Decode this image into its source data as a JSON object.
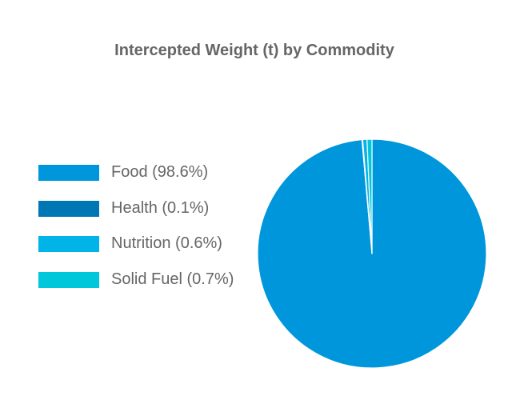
{
  "chart_data": {
    "type": "pie",
    "title": "Intercepted Weight (t) by Commodity",
    "slices": [
      {
        "label": "Food (98.6%)",
        "name": "Food",
        "percent": 98.6,
        "color": "#0096db"
      },
      {
        "label": "Health (0.1%)",
        "name": "Health",
        "percent": 0.1,
        "color": "#0077b5"
      },
      {
        "label": "Nutrition (0.6%)",
        "name": "Nutrition",
        "percent": 0.6,
        "color": "#00b4e8"
      },
      {
        "label": "Solid Fuel (0.7%)",
        "name": "Solid Fuel",
        "percent": 0.7,
        "color": "#00c8da"
      }
    ],
    "legend_position": "left",
    "start_angle": "top",
    "direction": "clockwise"
  }
}
